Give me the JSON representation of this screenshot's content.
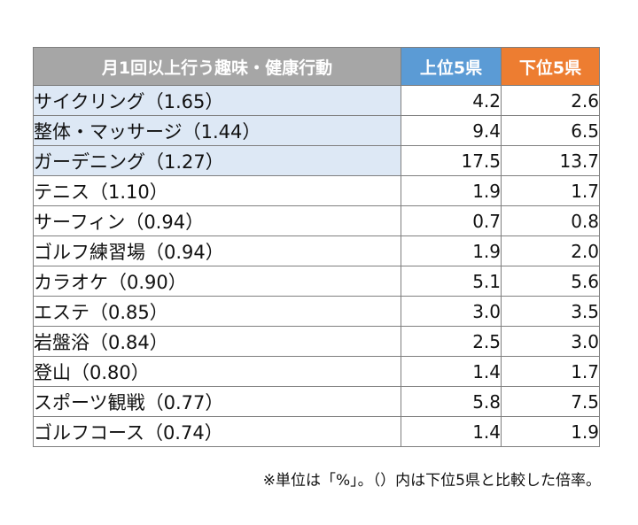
{
  "chart_data": {
    "type": "table",
    "columns": [
      "月1回以上行う趣味・健康行動",
      "上位5県",
      "下位5県"
    ],
    "rows": [
      {
        "item": "サイクリング（1.65）",
        "top5": "4.2",
        "bottom5": "2.6"
      },
      {
        "item": "整体・マッサージ（1.44）",
        "top5": "9.4",
        "bottom5": "6.5"
      },
      {
        "item": "ガーデニング（1.27）",
        "top5": "17.5",
        "bottom5": "13.7"
      },
      {
        "item": "テニス（1.10）",
        "top5": "1.9",
        "bottom5": "1.7"
      },
      {
        "item": "サーフィン（0.94）",
        "top5": "0.7",
        "bottom5": "0.8"
      },
      {
        "item": "ゴルフ練習場（0.94）",
        "top5": "1.9",
        "bottom5": "2.0"
      },
      {
        "item": "カラオケ（0.90）",
        "top5": "5.1",
        "bottom5": "5.6"
      },
      {
        "item": "エステ（0.85）",
        "top5": "3.0",
        "bottom5": "3.5"
      },
      {
        "item": "岩盤浴（0.84）",
        "top5": "2.5",
        "bottom5": "3.0"
      },
      {
        "item": "登山（0.80）",
        "top5": "1.4",
        "bottom5": "1.7"
      },
      {
        "item": "スポーツ観戦（0.77）",
        "top5": "5.8",
        "bottom5": "7.5"
      },
      {
        "item": "ゴルフコース（0.74）",
        "top5": "1.4",
        "bottom5": "1.9"
      }
    ],
    "highlighted_rows": [
      0,
      1,
      2
    ],
    "note": "※単位は「%」。（）内は下位5県と比較した倍率。"
  },
  "colors": {
    "header_item": "#a6a6a6",
    "header_top5": "#5b9bd5",
    "header_bottom5": "#ed7d31",
    "highlight_row": "#dde8f5",
    "border": "#7f7f7f"
  }
}
